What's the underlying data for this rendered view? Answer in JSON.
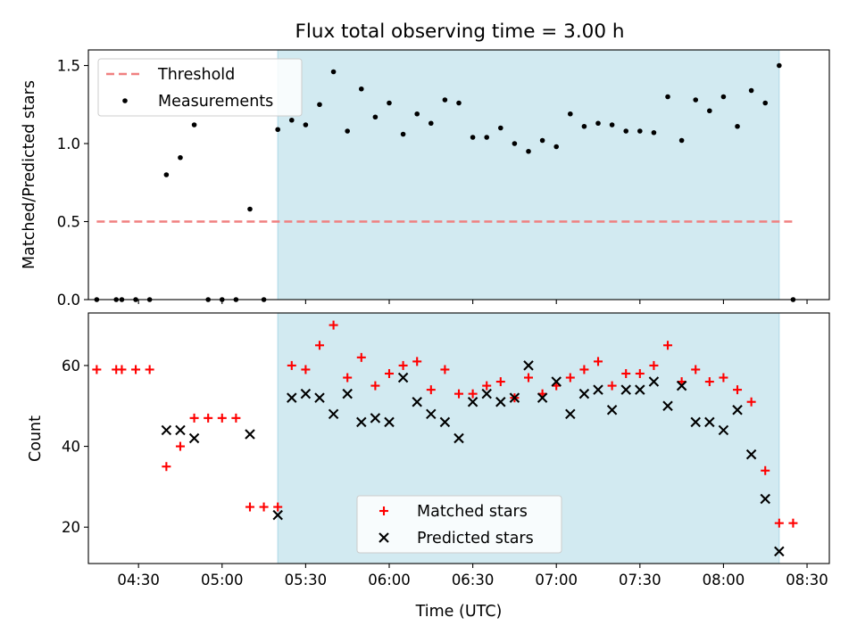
{
  "chart_data": {
    "title": "Flux total observing time = 3.00 h",
    "xlabel": "Time (UTC)",
    "xticks": [
      "04:30",
      "05:00",
      "05:30",
      "06:00",
      "06:30",
      "07:00",
      "07:30",
      "08:00",
      "08:30"
    ],
    "xlim": [
      "04:12",
      "08:38"
    ],
    "shaded_span": [
      "05:20",
      "08:20"
    ],
    "shade_color": "#add8e6",
    "charts": [
      {
        "type": "scatter",
        "ylabel": "Matched/Predicted stars",
        "ylim": [
          0,
          1.6
        ],
        "yticks": [
          "0.0",
          "0.5",
          "1.0",
          "1.5"
        ],
        "legend": "top-left",
        "threshold": {
          "name": "Threshold",
          "value": 0.5,
          "x": [
            "04:15",
            "08:25"
          ],
          "color": "#f08080"
        },
        "series": [
          {
            "name": "Measurements",
            "color": "#000000",
            "points": [
              [
                "04:15",
                0.0
              ],
              [
                "04:22",
                0.0
              ],
              [
                "04:24",
                0.0
              ],
              [
                "04:29",
                0.0
              ],
              [
                "04:34",
                0.0
              ],
              [
                "04:40",
                0.8
              ],
              [
                "04:45",
                0.91
              ],
              [
                "04:50",
                1.12
              ],
              [
                "04:55",
                0.0
              ],
              [
                "05:00",
                0.0
              ],
              [
                "05:05",
                0.0
              ],
              [
                "05:10",
                0.58
              ],
              [
                "05:15",
                0.0
              ],
              [
                "05:20",
                1.09
              ],
              [
                "05:25",
                1.15
              ],
              [
                "05:30",
                1.12
              ],
              [
                "05:35",
                1.25
              ],
              [
                "05:40",
                1.46
              ],
              [
                "05:45",
                1.08
              ],
              [
                "05:50",
                1.35
              ],
              [
                "05:55",
                1.17
              ],
              [
                "06:00",
                1.26
              ],
              [
                "06:05",
                1.06
              ],
              [
                "06:10",
                1.19
              ],
              [
                "06:15",
                1.13
              ],
              [
                "06:20",
                1.28
              ],
              [
                "06:25",
                1.26
              ],
              [
                "06:30",
                1.04
              ],
              [
                "06:35",
                1.04
              ],
              [
                "06:40",
                1.1
              ],
              [
                "06:45",
                1.0
              ],
              [
                "06:50",
                0.95
              ],
              [
                "06:55",
                1.02
              ],
              [
                "07:00",
                0.98
              ],
              [
                "07:05",
                1.19
              ],
              [
                "07:10",
                1.11
              ],
              [
                "07:15",
                1.13
              ],
              [
                "07:20",
                1.12
              ],
              [
                "07:25",
                1.08
              ],
              [
                "07:30",
                1.08
              ],
              [
                "07:35",
                1.07
              ],
              [
                "07:40",
                1.3
              ],
              [
                "07:45",
                1.02
              ],
              [
                "07:50",
                1.28
              ],
              [
                "07:55",
                1.21
              ],
              [
                "08:00",
                1.3
              ],
              [
                "08:05",
                1.11
              ],
              [
                "08:10",
                1.34
              ],
              [
                "08:15",
                1.26
              ],
              [
                "08:20",
                1.5
              ],
              [
                "08:25",
                0.0
              ]
            ]
          }
        ]
      },
      {
        "type": "scatter",
        "ylabel": "Count",
        "ylim": [
          11,
          73
        ],
        "yticks": [
          "20",
          "40",
          "60"
        ],
        "legend": "bottom-center",
        "series": [
          {
            "name": "Matched stars",
            "marker": "+",
            "color": "#ff0000",
            "points": [
              [
                "04:15",
                59
              ],
              [
                "04:22",
                59
              ],
              [
                "04:24",
                59
              ],
              [
                "04:29",
                59
              ],
              [
                "04:34",
                59
              ],
              [
                "04:40",
                35
              ],
              [
                "04:45",
                40
              ],
              [
                "04:50",
                47
              ],
              [
                "04:55",
                47
              ],
              [
                "05:00",
                47
              ],
              [
                "05:05",
                47
              ],
              [
                "05:10",
                25
              ],
              [
                "05:15",
                25
              ],
              [
                "05:20",
                25
              ],
              [
                "05:25",
                60
              ],
              [
                "05:30",
                59
              ],
              [
                "05:35",
                65
              ],
              [
                "05:40",
                70
              ],
              [
                "05:45",
                57
              ],
              [
                "05:50",
                62
              ],
              [
                "05:55",
                55
              ],
              [
                "06:00",
                58
              ],
              [
                "06:05",
                60
              ],
              [
                "06:10",
                61
              ],
              [
                "06:15",
                54
              ],
              [
                "06:20",
                59
              ],
              [
                "06:25",
                53
              ],
              [
                "06:30",
                53
              ],
              [
                "06:35",
                55
              ],
              [
                "06:40",
                56
              ],
              [
                "06:45",
                52
              ],
              [
                "06:50",
                57
              ],
              [
                "06:55",
                53
              ],
              [
                "07:00",
                55
              ],
              [
                "07:05",
                57
              ],
              [
                "07:10",
                59
              ],
              [
                "07:15",
                61
              ],
              [
                "07:20",
                55
              ],
              [
                "07:25",
                58
              ],
              [
                "07:30",
                58
              ],
              [
                "07:35",
                60
              ],
              [
                "07:40",
                65
              ],
              [
                "07:45",
                56
              ],
              [
                "07:50",
                59
              ],
              [
                "07:55",
                56
              ],
              [
                "08:00",
                57
              ],
              [
                "08:05",
                54
              ],
              [
                "08:10",
                51
              ],
              [
                "08:15",
                34
              ],
              [
                "08:20",
                21
              ],
              [
                "08:25",
                21
              ]
            ]
          },
          {
            "name": "Predicted stars",
            "marker": "x",
            "color": "#000000",
            "points": [
              [
                "04:40",
                44
              ],
              [
                "04:45",
                44
              ],
              [
                "04:50",
                42
              ],
              [
                "05:10",
                43
              ],
              [
                "05:20",
                23
              ],
              [
                "05:25",
                52
              ],
              [
                "05:30",
                53
              ],
              [
                "05:35",
                52
              ],
              [
                "05:40",
                48
              ],
              [
                "05:45",
                53
              ],
              [
                "05:50",
                46
              ],
              [
                "05:55",
                47
              ],
              [
                "06:00",
                46
              ],
              [
                "06:05",
                57
              ],
              [
                "06:10",
                51
              ],
              [
                "06:15",
                48
              ],
              [
                "06:20",
                46
              ],
              [
                "06:25",
                42
              ],
              [
                "06:30",
                51
              ],
              [
                "06:35",
                53
              ],
              [
                "06:40",
                51
              ],
              [
                "06:45",
                52
              ],
              [
                "06:50",
                60
              ],
              [
                "06:55",
                52
              ],
              [
                "07:00",
                56
              ],
              [
                "07:05",
                48
              ],
              [
                "07:10",
                53
              ],
              [
                "07:15",
                54
              ],
              [
                "07:20",
                49
              ],
              [
                "07:25",
                54
              ],
              [
                "07:30",
                54
              ],
              [
                "07:35",
                56
              ],
              [
                "07:40",
                50
              ],
              [
                "07:45",
                55
              ],
              [
                "07:50",
                46
              ],
              [
                "07:55",
                46
              ],
              [
                "08:00",
                44
              ],
              [
                "08:05",
                49
              ],
              [
                "08:10",
                38
              ],
              [
                "08:15",
                27
              ],
              [
                "08:20",
                14
              ]
            ]
          }
        ]
      }
    ]
  }
}
